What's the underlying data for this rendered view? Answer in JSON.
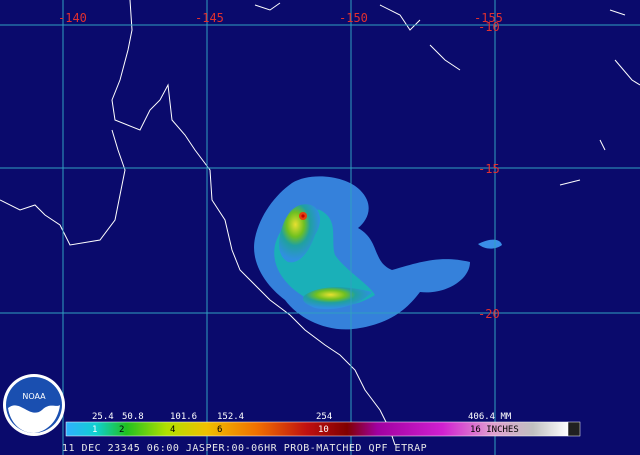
{
  "map": {
    "lon_labels": [
      "-140",
      "-145",
      "-150",
      "-155"
    ],
    "lat_labels": [
      "-10",
      "-15",
      "-20"
    ]
  },
  "logo": {
    "text": "NOAA"
  },
  "legend": {
    "mm_labels": [
      "25.4",
      "50.8",
      "101.6",
      "152.4",
      "254",
      "406.4 MM"
    ],
    "inch_labels": [
      "1",
      "2",
      "4",
      "6",
      "10",
      "16 INCHES"
    ]
  },
  "footer": {
    "caption": "11 DEC 23345 06:00 JASPER:00-06HR PROB-MATCHED QPF ETRAP"
  }
}
